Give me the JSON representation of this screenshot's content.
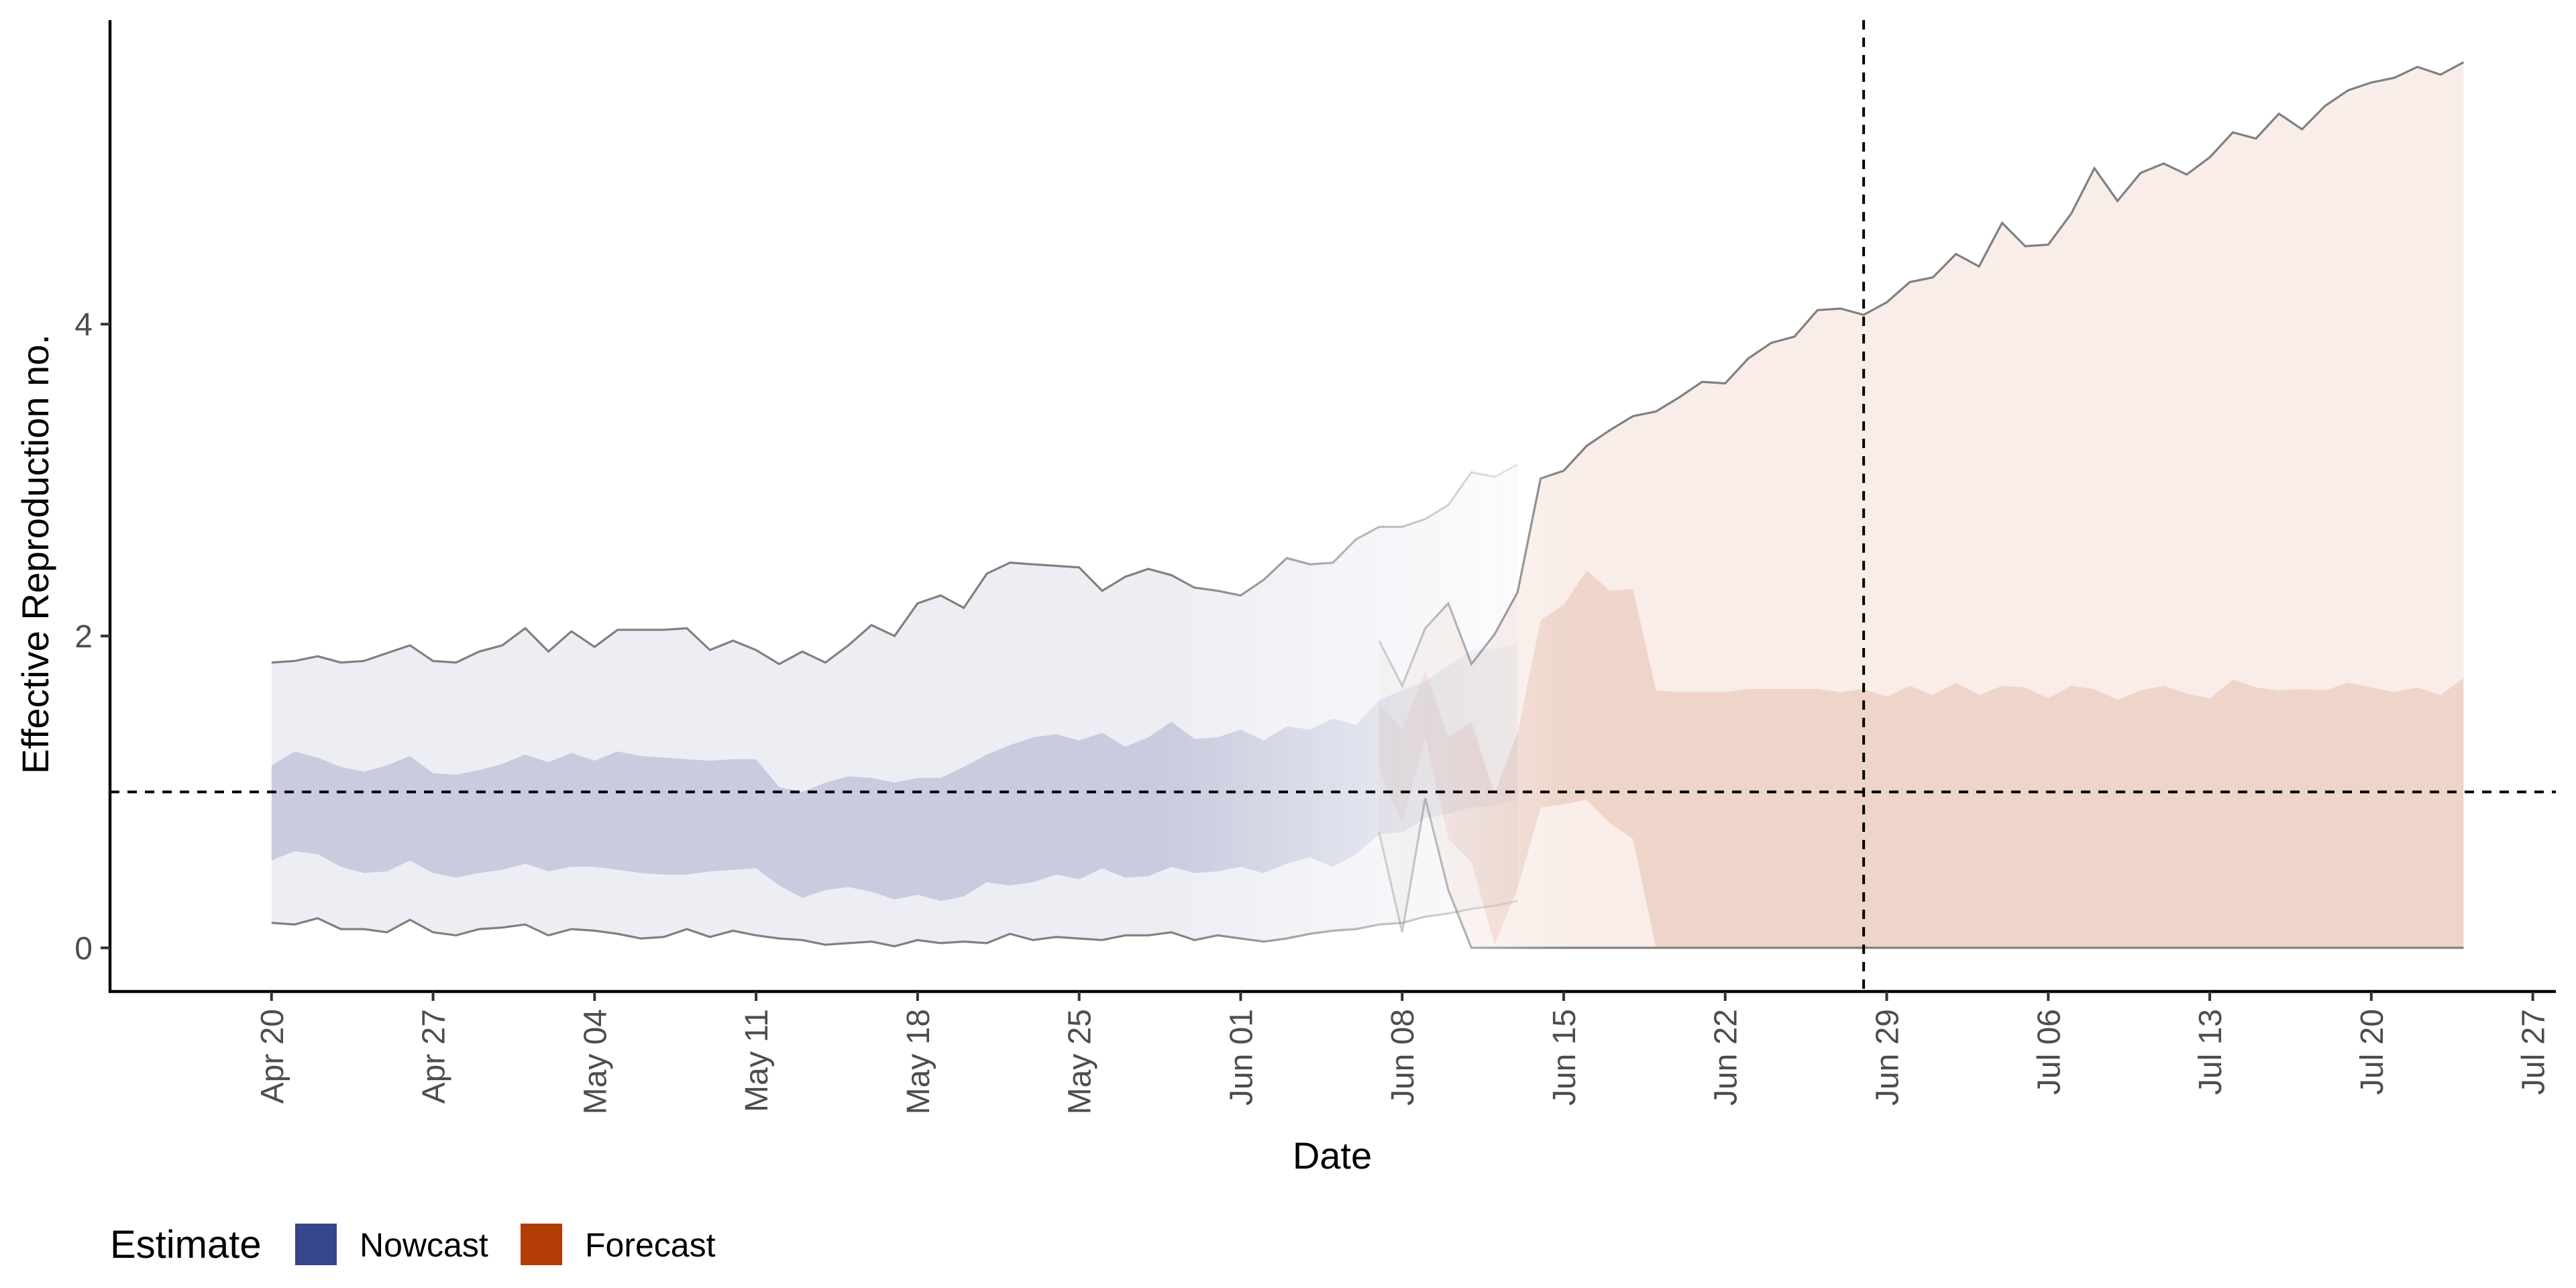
{
  "chart_data": {
    "type": "area",
    "title": "",
    "xlabel": "Date",
    "ylabel": "Effective Reproduction no.",
    "ylim": [
      -0.28,
      5.95
    ],
    "xlim": [
      "2020-04-13",
      "2020-07-28"
    ],
    "x_ticks": [
      {
        "date": "2020-04-20",
        "label": "Apr 20"
      },
      {
        "date": "2020-04-27",
        "label": "Apr 27"
      },
      {
        "date": "2020-05-04",
        "label": "May 04"
      },
      {
        "date": "2020-05-11",
        "label": "May 11"
      },
      {
        "date": "2020-05-18",
        "label": "May 18"
      },
      {
        "date": "2020-05-25",
        "label": "May 25"
      },
      {
        "date": "2020-06-01",
        "label": "Jun 01"
      },
      {
        "date": "2020-06-08",
        "label": "Jun 08"
      },
      {
        "date": "2020-06-15",
        "label": "Jun 15"
      },
      {
        "date": "2020-06-22",
        "label": "Jun 22"
      },
      {
        "date": "2020-06-29",
        "label": "Jun 29"
      },
      {
        "date": "2020-07-06",
        "label": "Jul 06"
      },
      {
        "date": "2020-07-13",
        "label": "Jul 13"
      },
      {
        "date": "2020-07-20",
        "label": "Jul 20"
      },
      {
        "date": "2020-07-27",
        "label": "Jul 27"
      }
    ],
    "y_ticks": [
      {
        "value": 0,
        "label": "0"
      },
      {
        "value": 2,
        "label": "2"
      },
      {
        "value": 4,
        "label": "4"
      }
    ],
    "reference_lines": {
      "horizontal_y": 1,
      "vertical_date": "2020-06-28",
      "style": "dashed"
    },
    "grid": false,
    "legend": {
      "title": "Estimate",
      "position": "bottom-left",
      "entries": [
        {
          "label": "Nowcast",
          "color": "#35478a"
        },
        {
          "label": "Forecast",
          "color": "#b33c04"
        }
      ]
    },
    "series": [
      {
        "estimate": "Nowcast",
        "color": "#35478a",
        "start_date": "2020-04-20",
        "upper90": [
          1.83,
          1.84,
          1.87,
          1.83,
          1.84,
          1.89,
          1.94,
          1.84,
          1.83,
          1.9,
          1.94,
          2.05,
          1.9,
          2.03,
          1.93,
          2.04,
          2.04,
          2.04,
          2.05,
          1.91,
          1.97,
          1.91,
          1.82,
          1.9,
          1.83,
          1.94,
          2.07,
          2.0,
          2.21,
          2.26,
          2.18,
          2.4,
          2.47,
          2.46,
          2.45,
          2.44,
          2.29,
          2.38,
          2.43,
          2.39,
          2.31,
          2.29,
          2.26,
          2.36,
          2.5,
          2.46,
          2.47,
          2.62,
          2.7,
          2.7,
          2.75,
          2.84,
          3.05,
          3.02,
          3.1
        ],
        "upper50": [
          1.17,
          1.26,
          1.22,
          1.16,
          1.13,
          1.17,
          1.23,
          1.12,
          1.11,
          1.14,
          1.18,
          1.24,
          1.19,
          1.25,
          1.2,
          1.26,
          1.23,
          1.22,
          1.21,
          1.2,
          1.21,
          1.21,
          1.03,
          1.0,
          1.06,
          1.1,
          1.09,
          1.06,
          1.09,
          1.09,
          1.16,
          1.24,
          1.3,
          1.35,
          1.37,
          1.33,
          1.38,
          1.29,
          1.35,
          1.45,
          1.34,
          1.35,
          1.4,
          1.33,
          1.42,
          1.4,
          1.47,
          1.43,
          1.59,
          1.65,
          1.71,
          1.81,
          1.91,
          1.92,
          1.95
        ],
        "lower50": [
          0.56,
          0.62,
          0.6,
          0.52,
          0.48,
          0.49,
          0.56,
          0.48,
          0.45,
          0.48,
          0.5,
          0.54,
          0.49,
          0.52,
          0.52,
          0.5,
          0.48,
          0.47,
          0.47,
          0.49,
          0.5,
          0.51,
          0.4,
          0.32,
          0.37,
          0.39,
          0.36,
          0.31,
          0.34,
          0.3,
          0.33,
          0.42,
          0.4,
          0.42,
          0.47,
          0.44,
          0.51,
          0.45,
          0.46,
          0.52,
          0.48,
          0.49,
          0.52,
          0.48,
          0.54,
          0.58,
          0.52,
          0.6,
          0.73,
          0.74,
          0.83,
          0.86,
          0.9,
          0.91,
          0.95
        ],
        "lower90": [
          0.16,
          0.15,
          0.19,
          0.12,
          0.12,
          0.1,
          0.18,
          0.1,
          0.08,
          0.12,
          0.13,
          0.15,
          0.08,
          0.12,
          0.11,
          0.09,
          0.06,
          0.07,
          0.12,
          0.07,
          0.11,
          0.08,
          0.06,
          0.05,
          0.02,
          0.03,
          0.04,
          0.01,
          0.05,
          0.03,
          0.04,
          0.03,
          0.09,
          0.05,
          0.07,
          0.06,
          0.05,
          0.08,
          0.08,
          0.1,
          0.05,
          0.08,
          0.06,
          0.04,
          0.06,
          0.09,
          0.11,
          0.12,
          0.15,
          0.16,
          0.2,
          0.22,
          0.25,
          0.27,
          0.3
        ]
      },
      {
        "estimate": "Forecast",
        "color": "#b33c04",
        "start_date": "2020-06-07",
        "upper90": [
          1.97,
          1.68,
          2.05,
          2.21,
          1.82,
          2.01,
          2.28,
          3.01,
          3.06,
          3.22,
          3.32,
          3.41,
          3.44,
          3.53,
          3.63,
          3.62,
          3.78,
          3.88,
          3.92,
          4.09,
          4.1,
          4.06,
          4.14,
          4.27,
          4.3,
          4.45,
          4.37,
          4.65,
          4.5,
          4.51,
          4.71,
          5.0,
          4.79,
          4.97,
          5.03,
          4.96,
          5.07,
          5.23,
          5.19,
          5.35,
          5.25,
          5.4,
          5.5,
          5.55,
          5.58,
          5.65,
          5.6,
          5.68
        ],
        "upper50": [
          1.57,
          1.4,
          1.78,
          1.35,
          1.45,
          0.99,
          1.38,
          2.1,
          2.2,
          2.42,
          2.29,
          2.3,
          1.65,
          1.64,
          1.64,
          1.64,
          1.66,
          1.66,
          1.66,
          1.66,
          1.64,
          1.66,
          1.61,
          1.68,
          1.62,
          1.7,
          1.62,
          1.68,
          1.67,
          1.6,
          1.68,
          1.66,
          1.59,
          1.65,
          1.68,
          1.63,
          1.6,
          1.72,
          1.67,
          1.65,
          1.66,
          1.65,
          1.7,
          1.67,
          1.64,
          1.67,
          1.62,
          1.73
        ],
        "lower50": [
          1.14,
          0.8,
          1.35,
          0.7,
          0.55,
          0.02,
          0.38,
          0.9,
          0.92,
          0.95,
          0.8,
          0.7,
          0.0,
          0.0,
          0.0,
          0.0,
          0.0,
          0.0,
          0.0,
          0.0,
          0.0,
          0.0,
          0.0,
          0.0,
          0.0,
          0.0,
          0.0,
          0.0,
          0.0,
          0.0,
          0.0,
          0.0,
          0.0,
          0.0,
          0.0,
          0.0,
          0.0,
          0.0,
          0.0,
          0.0,
          0.0,
          0.0,
          0.0,
          0.0,
          0.0,
          0.0,
          0.0,
          0.0
        ],
        "lower90": [
          0.74,
          0.1,
          0.96,
          0.37,
          0.0,
          0.0,
          0.0,
          0.0,
          0.0,
          0.0,
          0.0,
          0.0,
          0.0,
          0.0,
          0.0,
          0.0,
          0.0,
          0.0,
          0.0,
          0.0,
          0.0,
          0.0,
          0.0,
          0.0,
          0.0,
          0.0,
          0.0,
          0.0,
          0.0,
          0.0,
          0.0,
          0.0,
          0.0,
          0.0,
          0.0,
          0.0,
          0.0,
          0.0,
          0.0,
          0.0,
          0.0,
          0.0,
          0.0,
          0.0,
          0.0,
          0.0,
          0.0,
          0.0
        ]
      }
    ]
  }
}
